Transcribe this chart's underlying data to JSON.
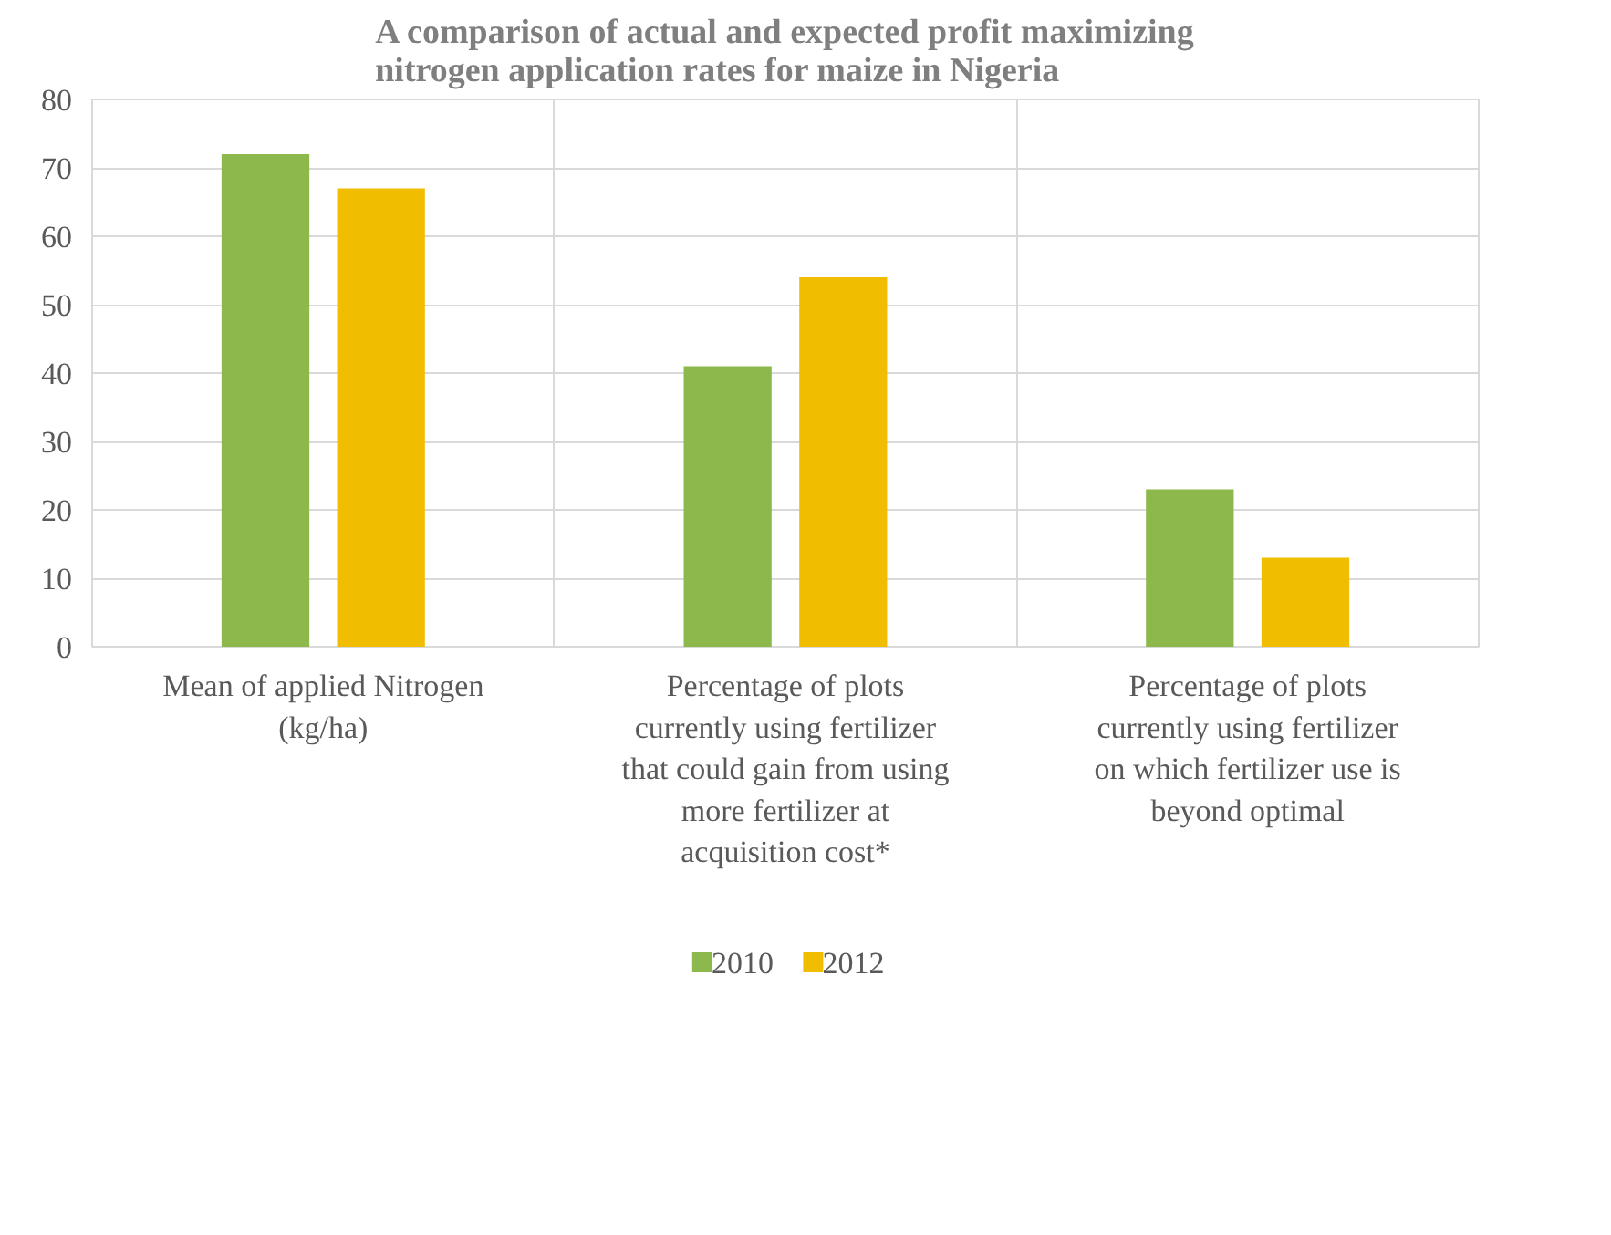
{
  "chart_data": {
    "type": "bar",
    "title": "A comparison of actual and expected profit maximizing nitrogen application rates for maize in Nigeria",
    "categories": [
      "Mean of applied Nitrogen (kg/ha)",
      "Percentage of plots currently using fertilizer that could gain from using more fertilizer at acquisition cost*",
      "Percentage of plots currently using fertilizer on which fertilizer use is beyond optimal"
    ],
    "series": [
      {
        "name": "2010",
        "color": "#8cb84c",
        "values": [
          72,
          41,
          23
        ]
      },
      {
        "name": "2012",
        "color": "#f0bd00",
        "values": [
          67,
          54,
          13
        ]
      }
    ],
    "ylim": [
      0,
      80
    ],
    "yticks": [
      0,
      10,
      20,
      30,
      40,
      50,
      60,
      70,
      80
    ],
    "grid": true,
    "legend": "bottom"
  }
}
